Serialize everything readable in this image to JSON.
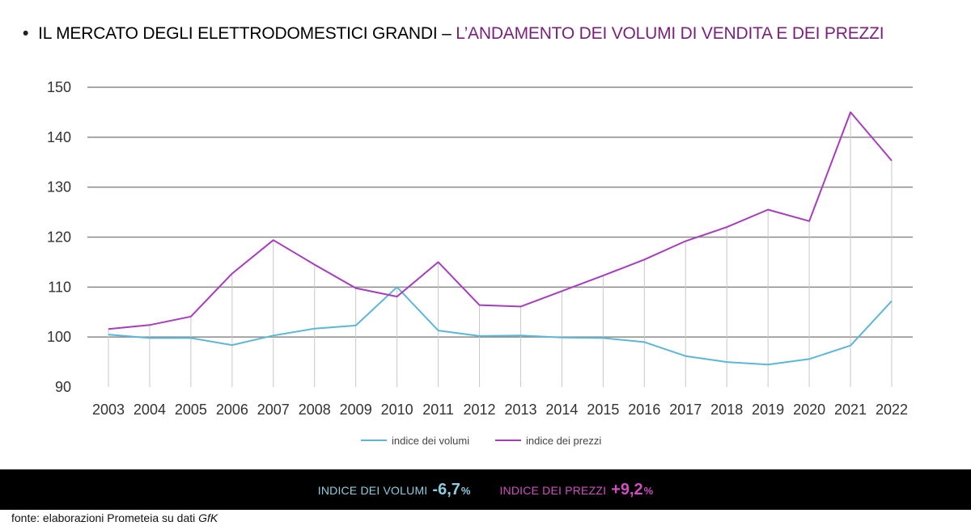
{
  "header": {
    "bullet": "•",
    "title_main": "IL MERCATO DEGLI ELETTRODOMESTICI GRANDI –",
    "title_sub": "L’ANDAMENTO DEI VOLUMI DI VENDITA E DEI PREZZI"
  },
  "colors": {
    "volumi": "#5bb7d9",
    "prezzi": "#a73cbf",
    "grid_major": "#8a8a8a",
    "drop_lines": "#c8c8c8",
    "banner_bg": "#000000",
    "title_accent": "#7a1f7a"
  },
  "chart_data": {
    "type": "line",
    "x": [
      "2003",
      "2004",
      "2005",
      "2006",
      "2007",
      "2008",
      "2009",
      "2010",
      "2011",
      "2012",
      "2013",
      "2014",
      "2015",
      "2016",
      "2017",
      "2018",
      "2019",
      "2020",
      "2021",
      "2022"
    ],
    "series": [
      {
        "name": "indice dei volumi",
        "values": [
          100.5,
          99.8,
          99.8,
          98.4,
          100.3,
          101.7,
          102.3,
          110.0,
          101.3,
          100.2,
          100.3,
          99.9,
          99.8,
          99.0,
          96.2,
          95.0,
          94.5,
          95.6,
          98.3,
          107.2
        ]
      },
      {
        "name": "indice dei prezzi",
        "values": [
          101.6,
          102.4,
          104.1,
          112.7,
          119.4,
          114.5,
          109.8,
          108.1,
          115.0,
          106.4,
          106.1,
          109.2,
          112.3,
          115.5,
          119.2,
          122.0,
          125.5,
          123.2,
          145.0,
          135.3
        ]
      }
    ],
    "yticks": [
      90,
      100,
      110,
      120,
      130,
      140,
      150
    ],
    "ylim": [
      90,
      150
    ],
    "grid": true,
    "drop_lines": true,
    "legend_position": "bottom-center"
  },
  "banner": {
    "volumi_label": "INDICE DEI VOLUMI",
    "volumi_value": "-6,7",
    "volumi_unit": "%",
    "prezzi_label": "INDICE DEI PREZZI",
    "prezzi_value": "+9,2",
    "prezzi_unit": "%"
  },
  "source": {
    "prefix": "fonte: elaborazioni Prometeia su dati",
    "italic": "GfK"
  }
}
